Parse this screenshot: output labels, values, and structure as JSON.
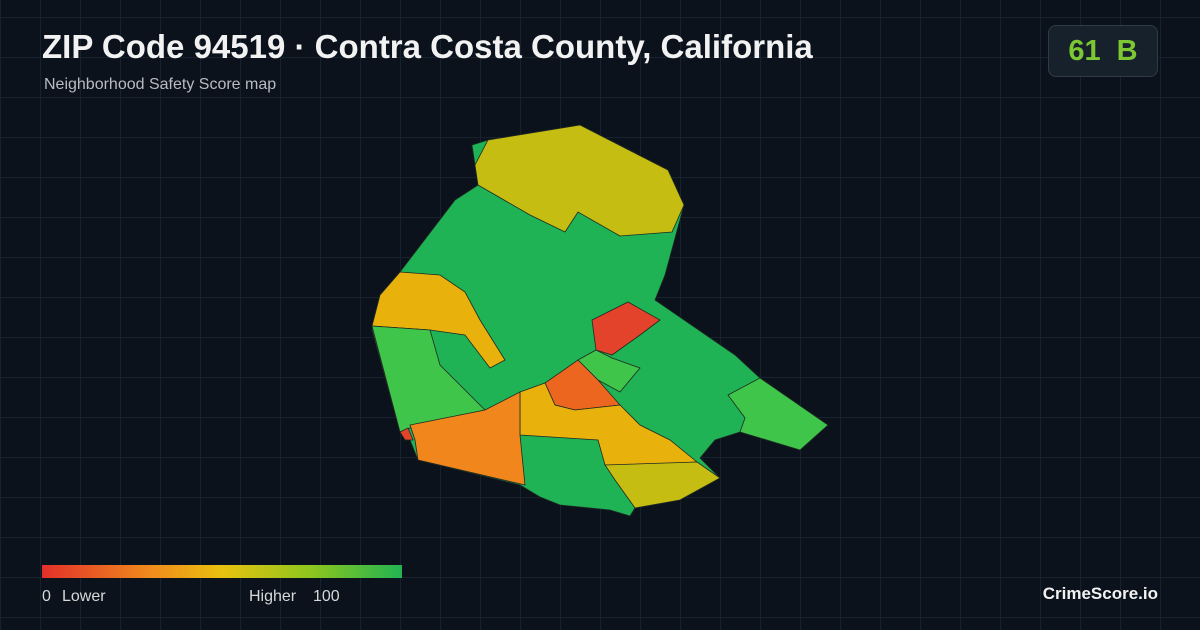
{
  "header": {
    "title": "ZIP Code 94519 · Contra Costa County, California",
    "subtitle": "Neighborhood Safety Score map"
  },
  "badge": {
    "score": "61",
    "grade": "B"
  },
  "legend": {
    "min": 0,
    "min_label": "Lower",
    "max_label": "Higher",
    "max": 100
  },
  "brand": "CrimeScore.io"
}
